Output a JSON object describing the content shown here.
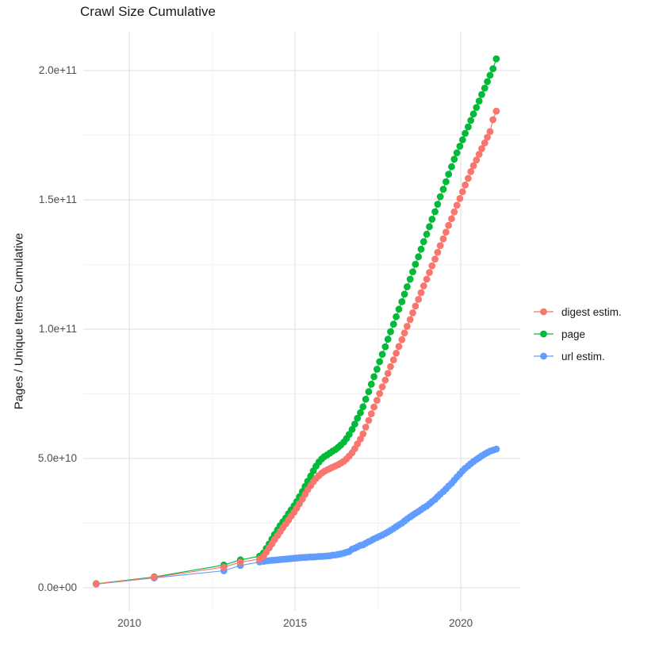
{
  "title": "Crawl Size Cumulative",
  "y_axis_title": "Pages / Unique Items Cumulative",
  "colors": {
    "digest": "#F8766D",
    "page": "#00BA38",
    "url": "#619CFF",
    "grid_major": "#E5E5E5",
    "grid_minor": "#F2F2F2",
    "axis_text": "#4d4d4d",
    "title_text": "#191919",
    "background": "#FFFFFF"
  },
  "legend": {
    "items": [
      {
        "label": "digest estim.",
        "color": "#F8766D"
      },
      {
        "label": "page",
        "color": "#00BA38"
      },
      {
        "label": "url estim.",
        "color": "#619CFF"
      }
    ]
  },
  "chart_data": {
    "type": "scatter",
    "title": "Crawl Size Cumulative",
    "xlabel": "",
    "ylabel": "Pages / Unique Items Cumulative",
    "x_unit": "year",
    "y_unit": "items, value stored in billions (1e9)",
    "grid": true,
    "legend_position": "right",
    "x_domain": [
      2008.61,
      2021.79
    ],
    "y_domain_e9": [
      -8.9,
      215
    ],
    "x_ticks": [
      {
        "v": 2010,
        "label": "2010"
      },
      {
        "v": 2015,
        "label": "2015"
      },
      {
        "v": 2020,
        "label": "2020"
      }
    ],
    "x_minor": [
      2012.5,
      2017.5
    ],
    "y_ticks": [
      {
        "v": 0,
        "label": "0.0e+00"
      },
      {
        "v": 50,
        "label": "5.0e+10"
      },
      {
        "v": 100,
        "label": "1.0e+11"
      },
      {
        "v": 150,
        "label": "1.5e+11"
      },
      {
        "v": 200,
        "label": "2.0e+11"
      }
    ],
    "y_minor": [
      25,
      75,
      125,
      175
    ],
    "series": [
      {
        "name": "url estim.",
        "color": "#619CFF",
        "points": [
          [
            2009.0,
            1.4
          ],
          [
            2010.75,
            3.8
          ],
          [
            2012.85,
            6.6
          ],
          [
            2013.35,
            8.6
          ],
          [
            2013.93,
            10.0
          ],
          [
            2014.05,
            10.2
          ],
          [
            2014.13,
            10.4
          ],
          [
            2014.22,
            10.5
          ],
          [
            2014.3,
            10.6
          ],
          [
            2014.38,
            10.7
          ],
          [
            2014.47,
            10.8
          ],
          [
            2014.55,
            10.9
          ],
          [
            2014.63,
            11.0
          ],
          [
            2014.72,
            11.1
          ],
          [
            2014.8,
            11.2
          ],
          [
            2014.88,
            11.3
          ],
          [
            2014.97,
            11.4
          ],
          [
            2015.05,
            11.5
          ],
          [
            2015.13,
            11.6
          ],
          [
            2015.22,
            11.7
          ],
          [
            2015.3,
            11.7
          ],
          [
            2015.38,
            11.8
          ],
          [
            2015.47,
            11.9
          ],
          [
            2015.55,
            11.9
          ],
          [
            2015.63,
            12.0
          ],
          [
            2015.72,
            12.1
          ],
          [
            2015.8,
            12.1
          ],
          [
            2015.88,
            12.2
          ],
          [
            2015.97,
            12.3
          ],
          [
            2016.05,
            12.4
          ],
          [
            2016.13,
            12.6
          ],
          [
            2016.22,
            12.7
          ],
          [
            2016.3,
            12.9
          ],
          [
            2016.38,
            13.1
          ],
          [
            2016.47,
            13.4
          ],
          [
            2016.55,
            13.7
          ],
          [
            2016.63,
            14.0
          ],
          [
            2016.72,
            14.9
          ],
          [
            2016.8,
            15.3
          ],
          [
            2016.88,
            15.8
          ],
          [
            2016.97,
            16.4
          ],
          [
            2017.05,
            16.6
          ],
          [
            2017.13,
            17.2
          ],
          [
            2017.22,
            17.8
          ],
          [
            2017.3,
            18.3
          ],
          [
            2017.38,
            18.9
          ],
          [
            2017.47,
            19.4
          ],
          [
            2017.55,
            19.9
          ],
          [
            2017.63,
            20.4
          ],
          [
            2017.72,
            21.0
          ],
          [
            2017.8,
            21.6
          ],
          [
            2017.88,
            22.2
          ],
          [
            2017.97,
            22.9
          ],
          [
            2018.05,
            23.6
          ],
          [
            2018.13,
            24.3
          ],
          [
            2018.22,
            25.0
          ],
          [
            2018.3,
            25.8
          ],
          [
            2018.38,
            26.6
          ],
          [
            2018.47,
            27.4
          ],
          [
            2018.55,
            28.1
          ],
          [
            2018.63,
            28.8
          ],
          [
            2018.72,
            29.5
          ],
          [
            2018.8,
            30.2
          ],
          [
            2018.88,
            30.9
          ],
          [
            2018.97,
            31.6
          ],
          [
            2019.05,
            32.4
          ],
          [
            2019.13,
            33.3
          ],
          [
            2019.22,
            34.2
          ],
          [
            2019.3,
            35.2
          ],
          [
            2019.38,
            36.2
          ],
          [
            2019.47,
            37.2
          ],
          [
            2019.55,
            38.2
          ],
          [
            2019.63,
            39.3
          ],
          [
            2019.72,
            40.4
          ],
          [
            2019.8,
            41.6
          ],
          [
            2019.88,
            42.8
          ],
          [
            2019.97,
            44.0
          ],
          [
            2020.05,
            45.2
          ],
          [
            2020.13,
            46.2
          ],
          [
            2020.22,
            47.1
          ],
          [
            2020.3,
            48.0
          ],
          [
            2020.38,
            48.8
          ],
          [
            2020.47,
            49.6
          ],
          [
            2020.55,
            50.3
          ],
          [
            2020.63,
            51.0
          ],
          [
            2020.72,
            51.7
          ],
          [
            2020.8,
            52.3
          ],
          [
            2020.88,
            52.8
          ],
          [
            2020.97,
            53.2
          ],
          [
            2021.07,
            53.6
          ]
        ]
      },
      {
        "name": "page",
        "color": "#00BA38",
        "points": [
          [
            2009.0,
            1.6
          ],
          [
            2010.75,
            4.2
          ],
          [
            2012.85,
            8.8
          ],
          [
            2013.35,
            10.8
          ],
          [
            2013.93,
            12.2
          ],
          [
            2014.05,
            13.5
          ],
          [
            2014.13,
            15.2
          ],
          [
            2014.22,
            17.0
          ],
          [
            2014.3,
            18.8
          ],
          [
            2014.38,
            20.6
          ],
          [
            2014.47,
            22.4
          ],
          [
            2014.55,
            24.0
          ],
          [
            2014.63,
            25.5
          ],
          [
            2014.72,
            27.0
          ],
          [
            2014.8,
            28.6
          ],
          [
            2014.88,
            30.1
          ],
          [
            2014.97,
            31.7
          ],
          [
            2015.05,
            33.3
          ],
          [
            2015.13,
            35.2
          ],
          [
            2015.22,
            37.2
          ],
          [
            2015.3,
            39.2
          ],
          [
            2015.38,
            41.2
          ],
          [
            2015.47,
            43.2
          ],
          [
            2015.55,
            45.2
          ],
          [
            2015.63,
            47.0
          ],
          [
            2015.72,
            48.6
          ],
          [
            2015.8,
            49.8
          ],
          [
            2015.88,
            50.7
          ],
          [
            2015.97,
            51.4
          ],
          [
            2016.05,
            52.1
          ],
          [
            2016.13,
            52.8
          ],
          [
            2016.22,
            53.5
          ],
          [
            2016.3,
            54.3
          ],
          [
            2016.38,
            55.2
          ],
          [
            2016.47,
            56.3
          ],
          [
            2016.55,
            57.7
          ],
          [
            2016.63,
            59.3
          ],
          [
            2016.72,
            61.2
          ],
          [
            2016.8,
            63.3
          ],
          [
            2016.88,
            65.5
          ],
          [
            2016.97,
            67.7
          ],
          [
            2017.05,
            70.0
          ],
          [
            2017.13,
            72.9
          ],
          [
            2017.22,
            75.8
          ],
          [
            2017.3,
            78.7
          ],
          [
            2017.38,
            81.6
          ],
          [
            2017.47,
            84.5
          ],
          [
            2017.55,
            87.4
          ],
          [
            2017.63,
            90.3
          ],
          [
            2017.72,
            93.2
          ],
          [
            2017.8,
            96.1
          ],
          [
            2017.88,
            99.0
          ],
          [
            2017.97,
            101.9
          ],
          [
            2018.05,
            104.8
          ],
          [
            2018.13,
            107.7
          ],
          [
            2018.22,
            110.6
          ],
          [
            2018.3,
            113.5
          ],
          [
            2018.38,
            116.4
          ],
          [
            2018.47,
            119.3
          ],
          [
            2018.55,
            122.2
          ],
          [
            2018.63,
            125.1
          ],
          [
            2018.72,
            128.0
          ],
          [
            2018.8,
            130.9
          ],
          [
            2018.88,
            133.8
          ],
          [
            2018.97,
            136.7
          ],
          [
            2019.05,
            139.6
          ],
          [
            2019.13,
            142.5
          ],
          [
            2019.22,
            145.4
          ],
          [
            2019.3,
            148.3
          ],
          [
            2019.38,
            151.2
          ],
          [
            2019.47,
            154.1
          ],
          [
            2019.55,
            157.0
          ],
          [
            2019.63,
            159.9
          ],
          [
            2019.72,
            162.8
          ],
          [
            2019.8,
            165.7
          ],
          [
            2019.88,
            168.2
          ],
          [
            2019.97,
            170.7
          ],
          [
            2020.05,
            173.2
          ],
          [
            2020.13,
            175.7
          ],
          [
            2020.22,
            178.2
          ],
          [
            2020.3,
            180.7
          ],
          [
            2020.38,
            183.2
          ],
          [
            2020.47,
            185.7
          ],
          [
            2020.55,
            188.2
          ],
          [
            2020.63,
            190.7
          ],
          [
            2020.72,
            193.2
          ],
          [
            2020.8,
            195.7
          ],
          [
            2020.88,
            198.2
          ],
          [
            2020.97,
            200.7
          ],
          [
            2021.07,
            204.5
          ]
        ]
      },
      {
        "name": "digest estim.",
        "color": "#F8766D",
        "points": [
          [
            2009.0,
            1.5
          ],
          [
            2010.75,
            4.0
          ],
          [
            2012.85,
            8.0
          ],
          [
            2013.35,
            9.9
          ],
          [
            2013.93,
            11.1
          ],
          [
            2014.05,
            12.3
          ],
          [
            2014.13,
            13.8
          ],
          [
            2014.22,
            15.4
          ],
          [
            2014.3,
            17.0
          ],
          [
            2014.38,
            18.6
          ],
          [
            2014.47,
            20.2
          ],
          [
            2014.55,
            21.7
          ],
          [
            2014.63,
            23.2
          ],
          [
            2014.72,
            24.7
          ],
          [
            2014.8,
            26.2
          ],
          [
            2014.88,
            27.7
          ],
          [
            2014.97,
            29.2
          ],
          [
            2015.05,
            30.8
          ],
          [
            2015.13,
            32.5
          ],
          [
            2015.22,
            34.3
          ],
          [
            2015.3,
            36.1
          ],
          [
            2015.38,
            37.9
          ],
          [
            2015.47,
            39.5
          ],
          [
            2015.55,
            41.0
          ],
          [
            2015.63,
            42.3
          ],
          [
            2015.72,
            43.4
          ],
          [
            2015.8,
            44.3
          ],
          [
            2015.88,
            45.0
          ],
          [
            2015.97,
            45.6
          ],
          [
            2016.05,
            46.1
          ],
          [
            2016.13,
            46.6
          ],
          [
            2016.22,
            47.1
          ],
          [
            2016.3,
            47.6
          ],
          [
            2016.38,
            48.2
          ],
          [
            2016.47,
            48.9
          ],
          [
            2016.55,
            49.8
          ],
          [
            2016.63,
            50.9
          ],
          [
            2016.72,
            52.2
          ],
          [
            2016.8,
            53.8
          ],
          [
            2016.88,
            55.6
          ],
          [
            2016.97,
            57.5
          ],
          [
            2017.05,
            59.5
          ],
          [
            2017.13,
            62.1
          ],
          [
            2017.22,
            64.7
          ],
          [
            2017.3,
            67.3
          ],
          [
            2017.38,
            69.9
          ],
          [
            2017.47,
            72.5
          ],
          [
            2017.55,
            75.1
          ],
          [
            2017.63,
            77.7
          ],
          [
            2017.72,
            80.3
          ],
          [
            2017.8,
            82.9
          ],
          [
            2017.88,
            85.5
          ],
          [
            2017.97,
            88.1
          ],
          [
            2018.05,
            90.7
          ],
          [
            2018.13,
            93.3
          ],
          [
            2018.22,
            95.9
          ],
          [
            2018.3,
            98.5
          ],
          [
            2018.38,
            101.1
          ],
          [
            2018.47,
            103.7
          ],
          [
            2018.55,
            106.3
          ],
          [
            2018.63,
            108.9
          ],
          [
            2018.72,
            111.5
          ],
          [
            2018.8,
            114.1
          ],
          [
            2018.88,
            116.7
          ],
          [
            2018.97,
            119.3
          ],
          [
            2019.05,
            121.9
          ],
          [
            2019.13,
            124.5
          ],
          [
            2019.22,
            127.1
          ],
          [
            2019.3,
            129.7
          ],
          [
            2019.38,
            132.3
          ],
          [
            2019.47,
            134.9
          ],
          [
            2019.55,
            137.5
          ],
          [
            2019.63,
            140.1
          ],
          [
            2019.72,
            142.7
          ],
          [
            2019.8,
            145.3
          ],
          [
            2019.88,
            147.9
          ],
          [
            2019.97,
            150.5
          ],
          [
            2020.05,
            153.1
          ],
          [
            2020.13,
            155.7
          ],
          [
            2020.22,
            158.3
          ],
          [
            2020.3,
            160.9
          ],
          [
            2020.38,
            163.2
          ],
          [
            2020.47,
            165.4
          ],
          [
            2020.55,
            167.6
          ],
          [
            2020.63,
            169.8
          ],
          [
            2020.72,
            172.0
          ],
          [
            2020.8,
            174.2
          ],
          [
            2020.88,
            176.4
          ],
          [
            2020.97,
            181.0
          ],
          [
            2021.07,
            184.3
          ]
        ]
      }
    ]
  }
}
